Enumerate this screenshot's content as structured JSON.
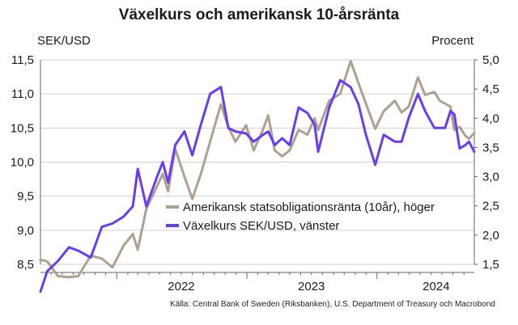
{
  "title": "Växelkurs och amerikansk 10-årsränta",
  "source": "Källa: Central Bank of Sweden (Riksbanken), U.S. Department of Treasury och Macrobond",
  "chart_data": {
    "type": "line",
    "title": "Växelkurs och amerikansk 10-årsränta",
    "ylabel_left": "SEK/USD",
    "ylabel_right": "Procent",
    "y_left_range": [
      8.5,
      11.5
    ],
    "y_right_range": [
      1.5,
      5.0
    ],
    "y_left_ticks": [
      "8,5",
      "9,0",
      "9,5",
      "10,0",
      "10,5",
      "11,0",
      "11,5"
    ],
    "y_right_ticks": [
      "1,5",
      "2,0",
      "2,5",
      "3,0",
      "3,5",
      "4,0",
      "4,5",
      "5,0"
    ],
    "x_labels": [
      "2022",
      "2023",
      "2024"
    ],
    "x_range": [
      "2021-06-01",
      "2024-09-30"
    ],
    "grid": "horizontal",
    "legend_position": "bottom-right",
    "series": [
      {
        "name": "Amerikansk statsobligationsränta (10år), höger",
        "axis": "right",
        "color": "#b0a08f",
        "points": [
          [
            "2021-06-01",
            1.58
          ],
          [
            "2021-06-20",
            1.55
          ],
          [
            "2021-07-20",
            1.3
          ],
          [
            "2021-08-20",
            1.28
          ],
          [
            "2021-09-15",
            1.3
          ],
          [
            "2021-10-20",
            1.65
          ],
          [
            "2021-11-20",
            1.6
          ],
          [
            "2021-12-20",
            1.45
          ],
          [
            "2022-01-20",
            1.82
          ],
          [
            "2022-02-15",
            2.02
          ],
          [
            "2022-03-01",
            1.75
          ],
          [
            "2022-03-25",
            2.45
          ],
          [
            "2022-04-25",
            2.85
          ],
          [
            "2022-05-10",
            3.05
          ],
          [
            "2022-05-25",
            2.75
          ],
          [
            "2022-06-14",
            3.48
          ],
          [
            "2022-07-10",
            3.0
          ],
          [
            "2022-08-01",
            2.62
          ],
          [
            "2022-08-25",
            3.05
          ],
          [
            "2022-09-20",
            3.6
          ],
          [
            "2022-10-20",
            4.24
          ],
          [
            "2022-11-10",
            3.85
          ],
          [
            "2022-11-30",
            3.6
          ],
          [
            "2022-12-30",
            3.88
          ],
          [
            "2023-01-20",
            3.45
          ],
          [
            "2023-02-15",
            3.8
          ],
          [
            "2023-03-02",
            4.05
          ],
          [
            "2023-03-20",
            3.45
          ],
          [
            "2023-04-10",
            3.35
          ],
          [
            "2023-05-01",
            3.45
          ],
          [
            "2023-05-26",
            3.8
          ],
          [
            "2023-06-20",
            3.72
          ],
          [
            "2023-07-10",
            4.0
          ],
          [
            "2023-07-20",
            3.8
          ],
          [
            "2023-08-20",
            4.3
          ],
          [
            "2023-09-20",
            4.42
          ],
          [
            "2023-10-19",
            4.98
          ],
          [
            "2023-11-10",
            4.6
          ],
          [
            "2023-12-01",
            4.25
          ],
          [
            "2023-12-27",
            3.82
          ],
          [
            "2024-01-20",
            4.12
          ],
          [
            "2024-02-20",
            4.3
          ],
          [
            "2024-03-10",
            4.1
          ],
          [
            "2024-03-30",
            4.2
          ],
          [
            "2024-04-25",
            4.7
          ],
          [
            "2024-05-15",
            4.4
          ],
          [
            "2024-06-10",
            4.45
          ],
          [
            "2024-06-25",
            4.3
          ],
          [
            "2024-07-10",
            4.25
          ],
          [
            "2024-07-25",
            4.2
          ],
          [
            "2024-08-05",
            3.8
          ],
          [
            "2024-08-20",
            3.85
          ],
          [
            "2024-09-05",
            3.7
          ],
          [
            "2024-09-15",
            3.65
          ],
          [
            "2024-09-30",
            3.75
          ]
        ]
      },
      {
        "name": "Växelkurs SEK/USD, vänster",
        "axis": "left",
        "color": "#6a3cf0",
        "points": [
          [
            "2021-06-01",
            8.1
          ],
          [
            "2021-06-20",
            8.4
          ],
          [
            "2021-07-20",
            8.55
          ],
          [
            "2021-08-20",
            8.75
          ],
          [
            "2021-09-15",
            8.7
          ],
          [
            "2021-10-20",
            8.6
          ],
          [
            "2021-11-20",
            9.05
          ],
          [
            "2021-12-20",
            9.1
          ],
          [
            "2022-01-20",
            9.2
          ],
          [
            "2022-02-15",
            9.35
          ],
          [
            "2022-03-01",
            9.9
          ],
          [
            "2022-03-25",
            9.35
          ],
          [
            "2022-04-25",
            9.8
          ],
          [
            "2022-05-10",
            10.0
          ],
          [
            "2022-05-25",
            9.7
          ],
          [
            "2022-06-14",
            10.25
          ],
          [
            "2022-07-10",
            10.45
          ],
          [
            "2022-08-01",
            10.1
          ],
          [
            "2022-08-25",
            10.55
          ],
          [
            "2022-09-20",
            11.0
          ],
          [
            "2022-10-20",
            11.1
          ],
          [
            "2022-11-10",
            10.5
          ],
          [
            "2022-11-30",
            10.45
          ],
          [
            "2022-12-30",
            10.42
          ],
          [
            "2023-01-20",
            10.3
          ],
          [
            "2023-02-15",
            10.4
          ],
          [
            "2023-03-02",
            10.45
          ],
          [
            "2023-03-20",
            10.25
          ],
          [
            "2023-04-10",
            10.35
          ],
          [
            "2023-05-01",
            10.25
          ],
          [
            "2023-05-26",
            10.8
          ],
          [
            "2023-06-20",
            10.72
          ],
          [
            "2023-07-10",
            10.55
          ],
          [
            "2023-07-20",
            10.15
          ],
          [
            "2023-08-20",
            10.8
          ],
          [
            "2023-09-20",
            11.2
          ],
          [
            "2023-10-19",
            11.1
          ],
          [
            "2023-11-10",
            10.85
          ],
          [
            "2023-12-01",
            10.4
          ],
          [
            "2023-12-27",
            9.96
          ],
          [
            "2024-01-20",
            10.4
          ],
          [
            "2024-02-20",
            10.3
          ],
          [
            "2024-03-10",
            10.3
          ],
          [
            "2024-03-30",
            10.65
          ],
          [
            "2024-04-25",
            11.0
          ],
          [
            "2024-05-15",
            10.75
          ],
          [
            "2024-06-10",
            10.5
          ],
          [
            "2024-06-25",
            10.5
          ],
          [
            "2024-07-10",
            10.5
          ],
          [
            "2024-07-25",
            10.75
          ],
          [
            "2024-08-05",
            10.7
          ],
          [
            "2024-08-20",
            10.2
          ],
          [
            "2024-09-05",
            10.25
          ],
          [
            "2024-09-15",
            10.3
          ],
          [
            "2024-09-30",
            10.15
          ]
        ]
      }
    ]
  }
}
